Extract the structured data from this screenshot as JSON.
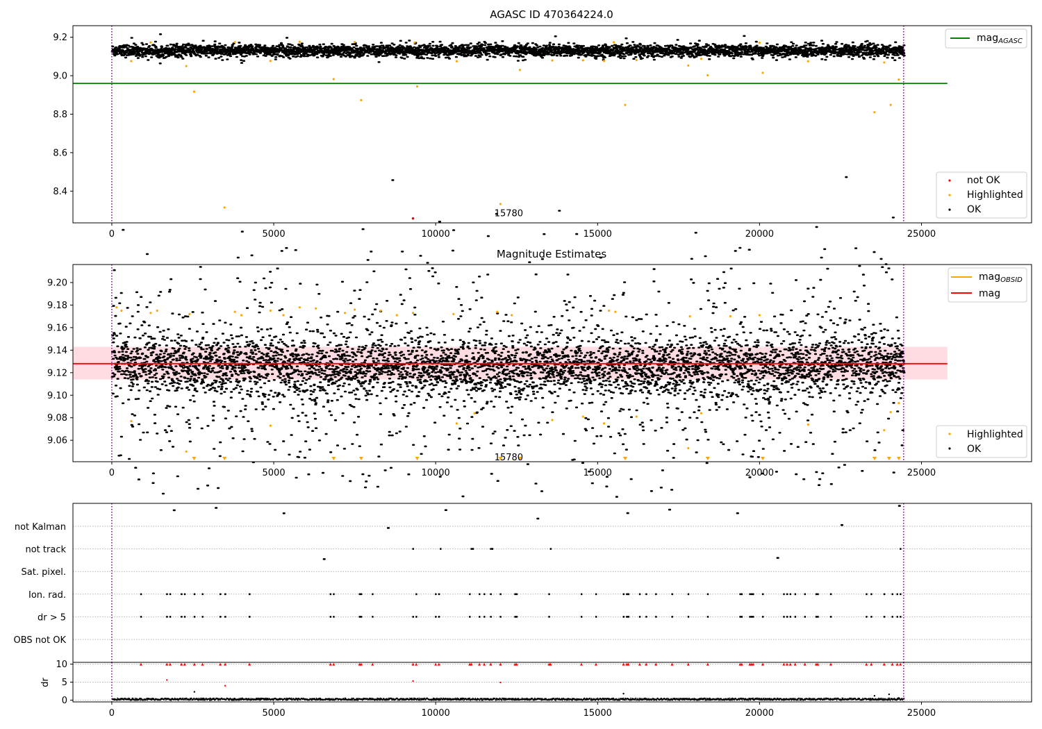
{
  "chart_data": [
    {
      "type": "scatter",
      "title": "AGASC ID 470364224.0",
      "x_ticks": [
        0,
        5000,
        10000,
        15000,
        20000,
        25000
      ],
      "y_ticks": [
        8.4,
        8.6,
        8.8,
        9.0,
        9.2
      ],
      "xlim": [
        -1200,
        28400
      ],
      "ylim": [
        8.235,
        9.26
      ],
      "x_range_data": [
        0,
        24450
      ],
      "obs_boundaries": [
        0,
        24450
      ],
      "annotation": {
        "text": "15780",
        "x": 12000,
        "y": 8.262
      },
      "reference_line": {
        "name": "mag",
        "subscript": "AGASC",
        "value": 8.96,
        "x_end": 25800,
        "color": "#008000"
      },
      "series": [
        {
          "name": "not OK",
          "color": "#ff0000",
          "points": [
            [
              9300,
              8.258
            ]
          ]
        },
        {
          "name": "Highlighted",
          "color": "#ffa500",
          "points": [
            [
              2300,
              9.05
            ],
            [
              2540,
              8.917
            ],
            [
              3480,
              8.315
            ],
            [
              6850,
              8.982
            ],
            [
              7700,
              8.873
            ],
            [
              9430,
              8.944
            ],
            [
              12000,
              8.333
            ],
            [
              12600,
              9.03
            ],
            [
              15850,
              8.848
            ],
            [
              17800,
              9.053
            ],
            [
              18400,
              9.002
            ],
            [
              20100,
              9.015
            ],
            [
              23550,
              8.81
            ],
            [
              24050,
              8.848
            ],
            [
              24300,
              8.98
            ],
            [
              600,
              9.076
            ],
            [
              4900,
              9.077
            ],
            [
              10650,
              9.075
            ],
            [
              13600,
              9.079
            ],
            [
              14550,
              9.08
            ],
            [
              15200,
              9.077
            ],
            [
              16200,
              9.081
            ],
            [
              18200,
              9.088
            ],
            [
              21500,
              9.075
            ],
            [
              23850,
              9.069
            ],
            [
              1200,
              9.173
            ],
            [
              3800,
              9.175
            ],
            [
              5800,
              9.176
            ],
            [
              7500,
              9.175
            ],
            [
              9350,
              9.172
            ],
            [
              15500,
              9.174
            ],
            [
              20000,
              9.171
            ]
          ]
        },
        {
          "name": "OK",
          "color": "#000000",
          "band": {
            "x_from": 0,
            "x_to": 24450,
            "center": 9.13,
            "spread": 0.035
          }
        }
      ],
      "legends": [
        {
          "position": "top-right",
          "items": [
            {
              "label": "mag",
              "subscript": "AGASC",
              "kind": "line",
              "color": "#008000"
            }
          ]
        },
        {
          "position": "lower-right",
          "items": [
            {
              "label": "not OK",
              "kind": "dot",
              "color": "#ff0000"
            },
            {
              "label": "Highlighted",
              "kind": "dot",
              "color": "#ffa500"
            },
            {
              "label": "OK",
              "kind": "dot",
              "color": "#000000"
            }
          ]
        }
      ]
    },
    {
      "type": "scatter",
      "title": "Magnitude Estimates",
      "x_ticks": [
        0,
        5000,
        10000,
        15000,
        20000,
        25000
      ],
      "y_ticks": [
        9.06,
        9.08,
        9.1,
        9.12,
        9.14,
        9.16,
        9.18,
        9.2
      ],
      "xlim": [
        -1200,
        28400
      ],
      "ylim": [
        9.041,
        9.216
      ],
      "obs_boundaries": [
        0,
        24450
      ],
      "annotation": {
        "text": "15780",
        "x": 12000,
        "y": 9.046
      },
      "mag_line": {
        "name": "mag",
        "value": 9.128,
        "x_end": 25800,
        "color": "#ff0000",
        "band": [
          9.114,
          9.143
        ]
      },
      "series": [
        {
          "name": "Highlighted",
          "color": "#ffa500",
          "points": [
            [
              150,
              9.178
            ],
            [
              300,
              9.175
            ],
            [
              600,
              9.077
            ],
            [
              1200,
              9.173
            ],
            [
              1400,
              9.175
            ],
            [
              2300,
              9.05
            ],
            [
              2400,
              9.172
            ],
            [
              3800,
              9.174
            ],
            [
              4000,
              9.171
            ],
            [
              4900,
              9.073
            ],
            [
              4900,
              9.175
            ],
            [
              5300,
              9.171
            ],
            [
              5800,
              9.178
            ],
            [
              6300,
              9.177
            ],
            [
              7200,
              9.173
            ],
            [
              7500,
              9.176
            ],
            [
              8300,
              9.175
            ],
            [
              8800,
              9.171
            ],
            [
              9300,
              9.173
            ],
            [
              10550,
              9.172
            ],
            [
              10650,
              9.075
            ],
            [
              11200,
              9.084
            ],
            [
              11900,
              9.174
            ],
            [
              12350,
              9.171
            ],
            [
              13600,
              9.078
            ],
            [
              14550,
              9.081
            ],
            [
              15200,
              9.075
            ],
            [
              15350,
              9.175
            ],
            [
              15550,
              9.174
            ],
            [
              16200,
              9.081
            ],
            [
              17800,
              9.053
            ],
            [
              17850,
              9.17
            ],
            [
              18200,
              9.084
            ],
            [
              19100,
              9.17
            ],
            [
              20000,
              9.171
            ],
            [
              21500,
              9.074
            ],
            [
              23850,
              9.069
            ],
            [
              24050,
              9.085
            ],
            [
              24300,
              9.093
            ]
          ]
        },
        {
          "name": "Highlighted (off-scale)",
          "color": "#ffa500",
          "off_scale_x": [
            2540,
            3480,
            6850,
            7700,
            9430,
            12000,
            12600,
            15850,
            18400,
            20100,
            23550,
            24000,
            24300
          ]
        },
        {
          "name": "OK",
          "color": "#000000",
          "band": {
            "x_from": 0,
            "x_to": 24450,
            "center": 9.128,
            "spread": 0.028
          }
        }
      ],
      "legends": [
        {
          "position": "top-right",
          "items": [
            {
              "label": "mag",
              "subscript": "OBSID",
              "kind": "line",
              "color": "#ffa500"
            },
            {
              "label": "mag",
              "kind": "line",
              "color": "#ff0000"
            }
          ]
        },
        {
          "position": "lower-right",
          "items": [
            {
              "label": "Highlighted",
              "kind": "dot",
              "color": "#ffa500"
            },
            {
              "label": "OK",
              "kind": "dot",
              "color": "#000000"
            }
          ]
        }
      ]
    },
    {
      "type": "scatter",
      "categories": [
        "not Kalman",
        "not track",
        "Sat. pixel.",
        "Ion. rad.",
        "dr > 5",
        "OBS not OK"
      ],
      "xlim": [
        -1200,
        28400
      ],
      "flags": {
        "not Kalman": [],
        "not track": [
          9300,
          10150,
          11100,
          11150,
          11700,
          11750,
          13550,
          24350
        ],
        "Sat. pixel.": [],
        "Ion. rad.": [
          900,
          1700,
          1800,
          2150,
          2250,
          2550,
          2800,
          3350,
          3500,
          4250,
          6750,
          6850,
          7650,
          7700,
          8050,
          9400,
          10000,
          10100,
          11050,
          11350,
          11500,
          11700,
          12000,
          12450,
          12500,
          13500,
          14500,
          14950,
          15800,
          15900,
          15950,
          16300,
          16500,
          16800,
          17300,
          17800,
          18400,
          19400,
          19450,
          19700,
          19750,
          19800,
          20100,
          20750,
          20850,
          20950,
          21100,
          21400,
          21750,
          21800,
          22200,
          23300,
          23450,
          23850,
          24100,
          24250,
          24350
        ],
        "dr > 5": [
          900,
          1700,
          1800,
          2150,
          2250,
          2550,
          2800,
          3350,
          3500,
          4250,
          6750,
          6850,
          7650,
          7700,
          8050,
          9300,
          9400,
          10000,
          10100,
          11050,
          11350,
          11500,
          11700,
          12000,
          12450,
          12500,
          13500,
          14500,
          14950,
          15800,
          15900,
          15950,
          16300,
          16500,
          16800,
          17300,
          17800,
          18400,
          19400,
          19450,
          19700,
          19750,
          19800,
          20100,
          20750,
          20850,
          20950,
          21100,
          21400,
          21750,
          21800,
          22200,
          23300,
          23450,
          23850,
          24100,
          24250,
          24350
        ],
        "OBS not OK": []
      },
      "obs_boundaries": [
        0,
        24450
      ]
    },
    {
      "type": "scatter",
      "ylabel": "dr",
      "x_ticks": [
        0,
        5000,
        10000,
        15000,
        20000,
        25000
      ],
      "y_ticks": [
        0,
        5,
        10
      ],
      "xlim": [
        -1200,
        28400
      ],
      "ylim": [
        -0.5,
        10.5
      ],
      "obs_boundaries": [
        0,
        24450
      ],
      "clipped_marker_x": [
        900,
        1700,
        1800,
        2150,
        2250,
        2550,
        2800,
        3350,
        3500,
        4250,
        6750,
        6850,
        7650,
        7700,
        8050,
        9300,
        9400,
        10000,
        10100,
        11050,
        11100,
        11350,
        11500,
        11700,
        12000,
        12450,
        12500,
        13500,
        13550,
        14500,
        14950,
        15800,
        15900,
        15950,
        16300,
        16500,
        16800,
        17300,
        17800,
        18400,
        19400,
        19450,
        19700,
        19750,
        19800,
        20100,
        20750,
        20850,
        20950,
        21100,
        21400,
        21750,
        21800,
        22200,
        23300,
        23450,
        23850,
        24100,
        24250,
        24350
      ],
      "mid_points": [
        [
          1700,
          5.6
        ],
        [
          3500,
          4.0
        ],
        [
          9300,
          5.3
        ],
        [
          12000,
          4.9
        ]
      ],
      "black_points": [
        [
          2550,
          2.3
        ],
        [
          15800,
          1.8
        ],
        [
          23550,
          1.2
        ],
        [
          24000,
          1.6
        ],
        [
          24300,
          0.6
        ]
      ],
      "baseline": {
        "x_from": 0,
        "x_to": 24450,
        "center": 0.25,
        "spread": 0.25
      }
    }
  ]
}
